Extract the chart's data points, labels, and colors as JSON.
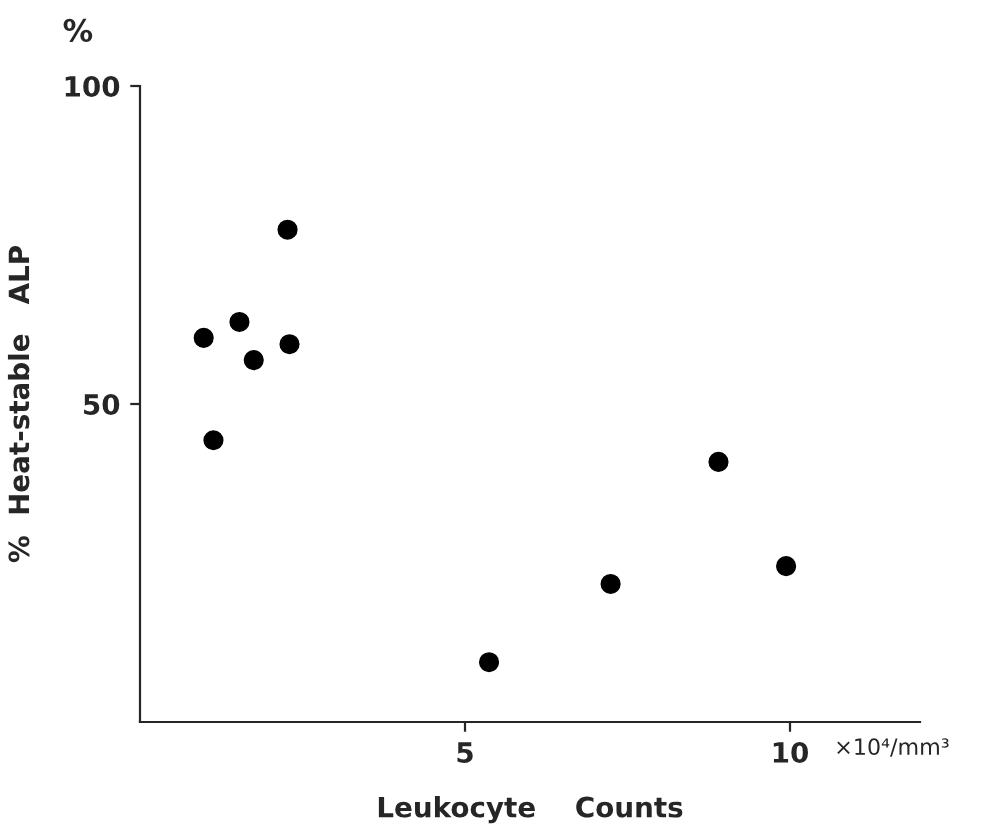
{
  "chart_data": {
    "type": "scatter",
    "xlabel": "Leukocyte    Counts",
    "ylabel": "%  Heat-stable   ALP",
    "annotations": [
      "%",
      "×10⁴/mm³"
    ],
    "x": [
      0.98,
      1.13,
      1.53,
      1.75,
      2.27,
      2.3,
      5.37,
      7.24,
      8.9,
      9.94
    ],
    "series": [
      {
        "color": "#000000",
        "values": [
          60.4,
          44.3,
          62.9,
          56.9,
          77.4,
          59.4,
          9.4,
          21.7,
          40.9,
          24.5
        ]
      }
    ],
    "xlim": [
      0,
      12
    ],
    "ylim": [
      0,
      100
    ],
    "xticks": [
      5,
      10
    ],
    "yticks": [
      50,
      100
    ],
    "marker": "circle",
    "grid": false,
    "legend": false
  }
}
